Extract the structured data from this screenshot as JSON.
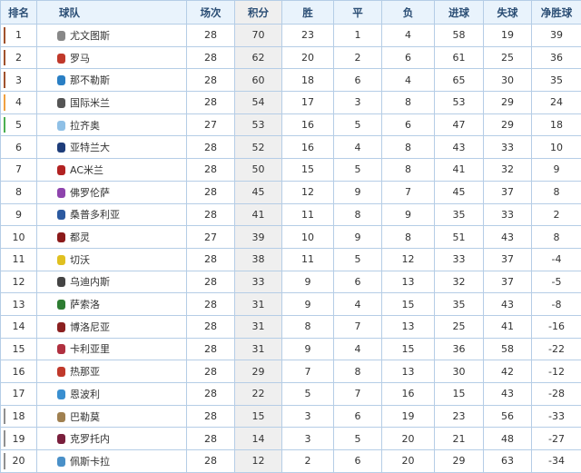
{
  "headers": [
    "排名",
    "球队",
    "场次",
    "积分",
    "胜",
    "平",
    "负",
    "进球",
    "失球",
    "净胜球"
  ],
  "zone_colors": {
    "champions": "#a0522d",
    "champions_qualifier": "#f0a040",
    "europa": "#4caf50",
    "relegation": "#909090"
  },
  "rows": [
    {
      "rank": "1",
      "team": "尤文图斯",
      "logo": "#888888",
      "zone": "champions",
      "played": "28",
      "points": "70",
      "w": "23",
      "d": "1",
      "l": "4",
      "gf": "58",
      "ga": "19",
      "gd": "39"
    },
    {
      "rank": "2",
      "team": "罗马",
      "logo": "#c0392b",
      "zone": "champions",
      "played": "28",
      "points": "62",
      "w": "20",
      "d": "2",
      "l": "6",
      "gf": "61",
      "ga": "25",
      "gd": "36"
    },
    {
      "rank": "3",
      "team": "那不勒斯",
      "logo": "#2a7fc4",
      "zone": "champions",
      "played": "28",
      "points": "60",
      "w": "18",
      "d": "6",
      "l": "4",
      "gf": "65",
      "ga": "30",
      "gd": "35"
    },
    {
      "rank": "4",
      "team": "国际米兰",
      "logo": "#555555",
      "zone": "champions_qualifier",
      "played": "28",
      "points": "54",
      "w": "17",
      "d": "3",
      "l": "8",
      "gf": "53",
      "ga": "29",
      "gd": "24"
    },
    {
      "rank": "5",
      "team": "拉齐奥",
      "logo": "#8fc0e6",
      "zone": "europa",
      "played": "27",
      "points": "53",
      "w": "16",
      "d": "5",
      "l": "6",
      "gf": "47",
      "ga": "29",
      "gd": "18"
    },
    {
      "rank": "6",
      "team": "亚特兰大",
      "logo": "#1e3d7a",
      "zone": "",
      "played": "28",
      "points": "52",
      "w": "16",
      "d": "4",
      "l": "8",
      "gf": "43",
      "ga": "33",
      "gd": "10"
    },
    {
      "rank": "7",
      "team": "AC米兰",
      "logo": "#b22222",
      "zone": "",
      "played": "28",
      "points": "50",
      "w": "15",
      "d": "5",
      "l": "8",
      "gf": "41",
      "ga": "32",
      "gd": "9"
    },
    {
      "rank": "8",
      "team": "佛罗伦萨",
      "logo": "#8e44ad",
      "zone": "",
      "played": "28",
      "points": "45",
      "w": "12",
      "d": "9",
      "l": "7",
      "gf": "45",
      "ga": "37",
      "gd": "8"
    },
    {
      "rank": "9",
      "team": "桑普多利亚",
      "logo": "#2c5aa0",
      "zone": "",
      "played": "28",
      "points": "41",
      "w": "11",
      "d": "8",
      "l": "9",
      "gf": "35",
      "ga": "33",
      "gd": "2"
    },
    {
      "rank": "10",
      "team": "都灵",
      "logo": "#8b1a1a",
      "zone": "",
      "played": "27",
      "points": "39",
      "w": "10",
      "d": "9",
      "l": "8",
      "gf": "51",
      "ga": "43",
      "gd": "8"
    },
    {
      "rank": "11",
      "team": "切沃",
      "logo": "#e0c020",
      "zone": "",
      "played": "28",
      "points": "38",
      "w": "11",
      "d": "5",
      "l": "12",
      "gf": "33",
      "ga": "37",
      "gd": "-4"
    },
    {
      "rank": "12",
      "team": "乌迪内斯",
      "logo": "#444444",
      "zone": "",
      "played": "28",
      "points": "33",
      "w": "9",
      "d": "6",
      "l": "13",
      "gf": "32",
      "ga": "37",
      "gd": "-5"
    },
    {
      "rank": "13",
      "team": "萨索洛",
      "logo": "#2e7d32",
      "zone": "",
      "played": "28",
      "points": "31",
      "w": "9",
      "d": "4",
      "l": "15",
      "gf": "35",
      "ga": "43",
      "gd": "-8"
    },
    {
      "rank": "14",
      "team": "博洛尼亚",
      "logo": "#8b2020",
      "zone": "",
      "played": "28",
      "points": "31",
      "w": "8",
      "d": "7",
      "l": "13",
      "gf": "25",
      "ga": "41",
      "gd": "-16"
    },
    {
      "rank": "15",
      "team": "卡利亚里",
      "logo": "#b03040",
      "zone": "",
      "played": "28",
      "points": "31",
      "w": "9",
      "d": "4",
      "l": "15",
      "gf": "36",
      "ga": "58",
      "gd": "-22"
    },
    {
      "rank": "16",
      "team": "热那亚",
      "logo": "#c0392b",
      "zone": "",
      "played": "28",
      "points": "29",
      "w": "7",
      "d": "8",
      "l": "13",
      "gf": "30",
      "ga": "42",
      "gd": "-12"
    },
    {
      "rank": "17",
      "team": "恩波利",
      "logo": "#3a8fd0",
      "zone": "",
      "played": "28",
      "points": "22",
      "w": "5",
      "d": "7",
      "l": "16",
      "gf": "15",
      "ga": "43",
      "gd": "-28"
    },
    {
      "rank": "18",
      "team": "巴勒莫",
      "logo": "#a08050",
      "zone": "relegation",
      "played": "28",
      "points": "15",
      "w": "3",
      "d": "6",
      "l": "19",
      "gf": "23",
      "ga": "56",
      "gd": "-33"
    },
    {
      "rank": "19",
      "team": "克罗托内",
      "logo": "#7a1f3d",
      "zone": "relegation",
      "played": "28",
      "points": "14",
      "w": "3",
      "d": "5",
      "l": "20",
      "gf": "21",
      "ga": "48",
      "gd": "-27"
    },
    {
      "rank": "20",
      "team": "佩斯卡拉",
      "logo": "#4a90c8",
      "zone": "relegation",
      "played": "28",
      "points": "12",
      "w": "2",
      "d": "6",
      "l": "20",
      "gf": "29",
      "ga": "63",
      "gd": "-34"
    }
  ]
}
